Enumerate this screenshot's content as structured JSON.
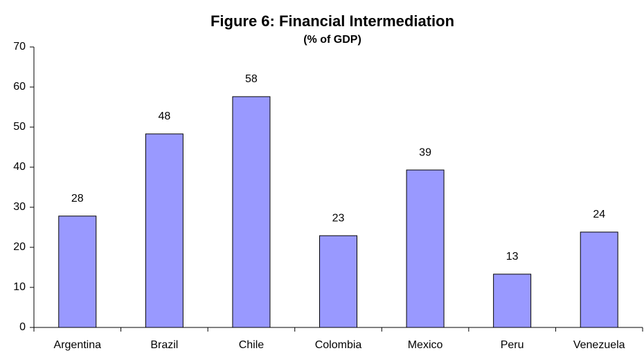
{
  "chart_data": {
    "type": "bar",
    "title": "Figure 6: Financial Intermediation",
    "subtitle": "(% of GDP)",
    "categories": [
      "Argentina",
      "Brazil",
      "Chile",
      "Colombia",
      "Mexico",
      "Peru",
      "Venezuela"
    ],
    "values": [
      27.8,
      48.3,
      57.6,
      22.9,
      39.3,
      13.3,
      23.8
    ],
    "value_labels": [
      "28",
      "48",
      "58",
      "23",
      "39",
      "13",
      "24"
    ],
    "color": "#9999ff",
    "ylim": [
      0,
      70
    ],
    "yticks": [
      0,
      10,
      20,
      30,
      40,
      50,
      60,
      70
    ],
    "grid": false
  }
}
